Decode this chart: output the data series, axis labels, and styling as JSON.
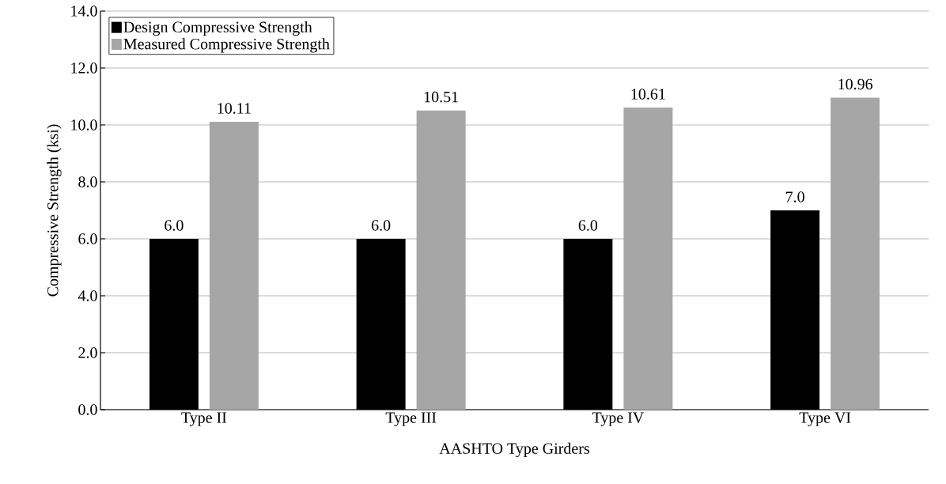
{
  "chart_data": {
    "type": "bar",
    "xlabel": "AASHTO Type Girders",
    "ylabel": "Compressive Strength (ksi)",
    "categories": [
      "Type II",
      "Type III",
      "Type IV",
      "Type VI"
    ],
    "series": [
      {
        "name": "Design Compressive Strength",
        "color": "#000000",
        "values": [
          6.0,
          6.0,
          6.0,
          7.0
        ],
        "value_labels": [
          "6.0",
          "6.0",
          "6.0",
          "7.0"
        ]
      },
      {
        "name": "Measured Compressive Strength",
        "color": "#a6a6a6",
        "values": [
          10.11,
          10.51,
          10.61,
          10.96
        ],
        "value_labels": [
          "10.11",
          "10.51",
          "10.61",
          "10.96"
        ]
      }
    ],
    "ylim": [
      0,
      14
    ],
    "yticks": [
      {
        "value": 0,
        "label": "0.0"
      },
      {
        "value": 2,
        "label": "2.0"
      },
      {
        "value": 4,
        "label": "4.0"
      },
      {
        "value": 6,
        "label": "6.0"
      },
      {
        "value": 8,
        "label": "8.0"
      },
      {
        "value": 10,
        "label": "10.0"
      },
      {
        "value": 12,
        "label": "12.0"
      },
      {
        "value": 14,
        "label": "14.0"
      }
    ],
    "grid": "y",
    "legend": "top left"
  }
}
